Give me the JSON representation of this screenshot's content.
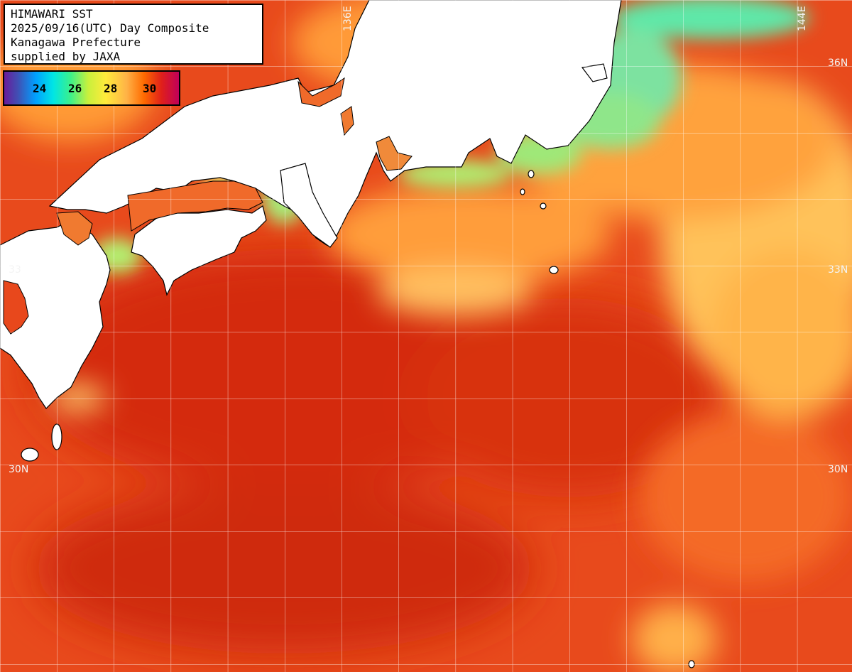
{
  "info": {
    "line1": "HIMAWARI SST",
    "line2": "2025/09/16(UTC) Day Composite",
    "line3": "Kanagawa Prefecture",
    "line4": "supplied by JAXA"
  },
  "legend": {
    "ticks": [
      "24",
      "26",
      "28",
      "30"
    ],
    "unit_colors": [
      "#6a1b9a",
      "#00a0ff",
      "#3cf08a",
      "#ffeb3b",
      "#ff6a00",
      "#c0005a"
    ]
  },
  "grid_labels": {
    "lon_136": "136E",
    "lon_144": "144E",
    "lat_36_right": "36N",
    "lat_33_right": "33N",
    "lat_33_left": "33",
    "lat_30_left": "30N",
    "lat_30_right": "30N"
  },
  "colors": {
    "land": "#ffffff",
    "warm_sea": "#e8461a",
    "hot_sea": "#d9300f",
    "cool_sea": "#ff9a3c",
    "cold_coast": "#7fe57a"
  }
}
